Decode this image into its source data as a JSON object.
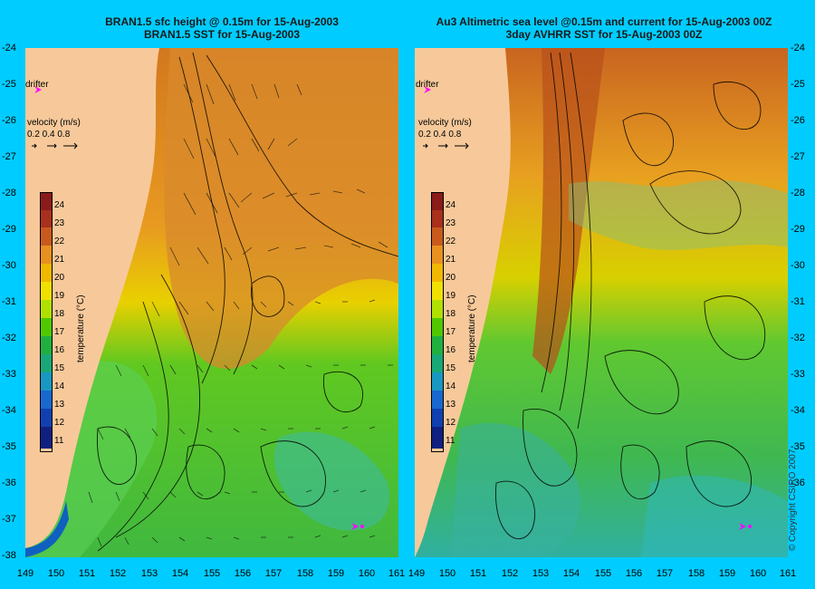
{
  "left_panel": {
    "title_line1": "BRAN1.5 sfc height @ 0.15m for 15-Aug-2003",
    "title_line2": "BRAN1.5 SST for 15-Aug-2003"
  },
  "right_panel": {
    "title_line1": "Au3 Altimetric sea level  @0.15m and current for 15-Aug-2003 00Z",
    "title_line2": "3day AVHRR SST for 15-Aug-2003 00Z"
  },
  "y_axis_labels": [
    "-24",
    "-25",
    "-26",
    "-27",
    "-28",
    "-29",
    "-30",
    "-31",
    "-32",
    "-33",
    "-34",
    "-35",
    "-36",
    "-37",
    "-38"
  ],
  "x_axis_labels": [
    "149",
    "150",
    "151",
    "152",
    "153",
    "154",
    "155",
    "156",
    "157",
    "158",
    "159",
    "160",
    "161"
  ],
  "drifter_label": "drifter",
  "velocity_legend": {
    "title": "velocity (m/s)",
    "values": "0.2 0.4 0.8"
  },
  "colorbar": {
    "title": "temperature (°C)",
    "ticks": [
      "24",
      "23",
      "22",
      "21",
      "20",
      "19",
      "18",
      "17",
      "16",
      "15",
      "14",
      "13",
      "12",
      "11"
    ],
    "colors": [
      "#8b1a1a",
      "#b3401c",
      "#d2691e",
      "#e8a020",
      "#f0c800",
      "#e8e800",
      "#a8e000",
      "#4cc800",
      "#20b040",
      "#18b080",
      "#20a0c0",
      "#1870d0",
      "#1040b0",
      "#102080"
    ]
  },
  "copyright": "© Copyright CSIRO 2007",
  "colors": {
    "background": "#00ccff",
    "land": "#f7c99a",
    "drifter_marker": "#ff00ff"
  }
}
